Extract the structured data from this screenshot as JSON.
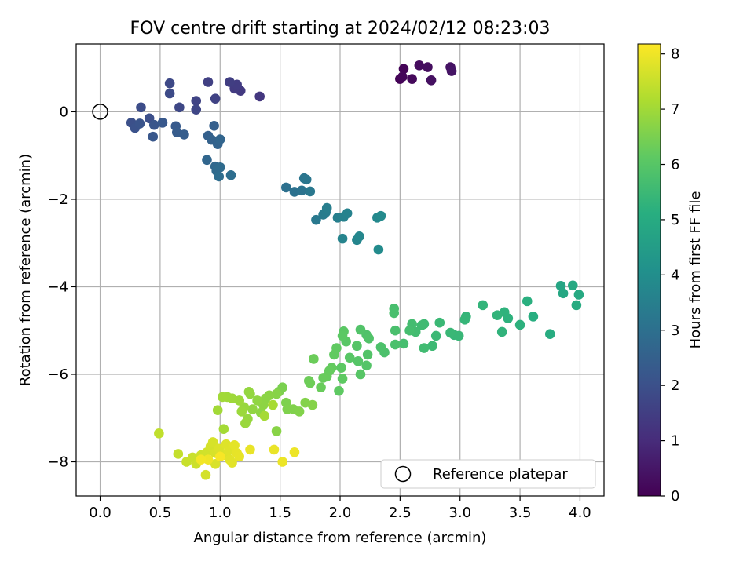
{
  "chart_data": {
    "type": "scatter",
    "title": "FOV centre drift starting at 2024/02/12 08:23:03",
    "xlabel": "Angular distance from reference (arcmin)",
    "ylabel": "Rotation from reference (arcmin)",
    "xlim": [
      -0.2,
      4.2
    ],
    "ylim": [
      -8.78,
      1.55
    ],
    "xticks": [
      0.0,
      0.5,
      1.0,
      1.5,
      2.0,
      2.5,
      3.0,
      3.5,
      4.0
    ],
    "xtick_labels": [
      "0.0",
      "0.5",
      "1.0",
      "1.5",
      "2.0",
      "2.5",
      "3.0",
      "3.5",
      "4.0"
    ],
    "yticks": [
      0,
      -2,
      -4,
      -6,
      -8
    ],
    "ytick_labels": [
      "0",
      "−2",
      "−4",
      "−6",
      "−8"
    ],
    "grid": true,
    "colormap": "viridis",
    "colorbar": {
      "label": "Hours from first FF file",
      "range": [
        0,
        8.18
      ],
      "ticks": [
        0,
        1,
        2,
        3,
        4,
        5,
        6,
        7,
        8
      ],
      "tick_labels": [
        "0",
        "1",
        "2",
        "3",
        "4",
        "5",
        "6",
        "7",
        "8"
      ]
    },
    "reference": {
      "label": "Reference platepar",
      "x": 0.0,
      "y": 0.0
    },
    "legend_position": "lower-right",
    "points": [
      {
        "x": 2.5,
        "y": 0.75,
        "t": 0.05
      },
      {
        "x": 2.53,
        "y": 0.98,
        "t": 0.08
      },
      {
        "x": 2.52,
        "y": 0.8,
        "t": 0.12
      },
      {
        "x": 2.6,
        "y": 0.75,
        "t": 0.18
      },
      {
        "x": 2.66,
        "y": 1.06,
        "t": 0.25
      },
      {
        "x": 2.73,
        "y": 1.02,
        "t": 0.3
      },
      {
        "x": 2.76,
        "y": 0.72,
        "t": 0.35
      },
      {
        "x": 2.92,
        "y": 1.02,
        "t": 0.4
      },
      {
        "x": 2.93,
        "y": 0.93,
        "t": 0.45
      },
      {
        "x": 1.33,
        "y": 0.35,
        "t": 1.3
      },
      {
        "x": 1.17,
        "y": 0.48,
        "t": 1.35
      },
      {
        "x": 1.12,
        "y": 0.53,
        "t": 1.4
      },
      {
        "x": 1.14,
        "y": 0.62,
        "t": 1.45
      },
      {
        "x": 1.08,
        "y": 0.68,
        "t": 1.5
      },
      {
        "x": 0.9,
        "y": 0.68,
        "t": 1.55
      },
      {
        "x": 0.96,
        "y": 0.3,
        "t": 1.6
      },
      {
        "x": 0.8,
        "y": 0.25,
        "t": 1.65
      },
      {
        "x": 0.8,
        "y": 0.05,
        "t": 1.7
      },
      {
        "x": 0.66,
        "y": 0.1,
        "t": 1.75
      },
      {
        "x": 0.58,
        "y": 0.65,
        "t": 1.8
      },
      {
        "x": 0.58,
        "y": 0.42,
        "t": 1.85
      },
      {
        "x": 0.34,
        "y": 0.1,
        "t": 1.9
      },
      {
        "x": 0.41,
        "y": -0.15,
        "t": 1.95
      },
      {
        "x": 0.26,
        "y": -0.25,
        "t": 2.0
      },
      {
        "x": 0.29,
        "y": -0.37,
        "t": 2.05
      },
      {
        "x": 0.33,
        "y": -0.27,
        "t": 2.1
      },
      {
        "x": 0.45,
        "y": -0.3,
        "t": 2.15
      },
      {
        "x": 0.44,
        "y": -0.57,
        "t": 2.2
      },
      {
        "x": 0.52,
        "y": -0.25,
        "t": 2.25
      },
      {
        "x": 0.63,
        "y": -0.33,
        "t": 2.3
      },
      {
        "x": 0.64,
        "y": -0.47,
        "t": 2.35
      },
      {
        "x": 0.7,
        "y": -0.52,
        "t": 2.4
      },
      {
        "x": 0.95,
        "y": -0.32,
        "t": 2.45
      },
      {
        "x": 0.9,
        "y": -0.55,
        "t": 2.5
      },
      {
        "x": 0.93,
        "y": -0.64,
        "t": 2.55
      },
      {
        "x": 0.98,
        "y": -0.74,
        "t": 2.6
      },
      {
        "x": 1.0,
        "y": -0.63,
        "t": 2.65
      },
      {
        "x": 0.89,
        "y": -1.1,
        "t": 2.7
      },
      {
        "x": 0.96,
        "y": -1.25,
        "t": 2.75
      },
      {
        "x": 0.97,
        "y": -1.35,
        "t": 2.8
      },
      {
        "x": 1.0,
        "y": -1.27,
        "t": 2.85
      },
      {
        "x": 0.99,
        "y": -1.48,
        "t": 2.9
      },
      {
        "x": 1.09,
        "y": -1.45,
        "t": 2.95
      },
      {
        "x": 1.55,
        "y": -1.73,
        "t": 3.0
      },
      {
        "x": 1.62,
        "y": -1.83,
        "t": 3.05
      },
      {
        "x": 1.68,
        "y": -1.8,
        "t": 3.1
      },
      {
        "x": 1.7,
        "y": -1.52,
        "t": 3.15
      },
      {
        "x": 1.72,
        "y": -1.55,
        "t": 3.2
      },
      {
        "x": 1.75,
        "y": -1.82,
        "t": 3.25
      },
      {
        "x": 1.8,
        "y": -2.47,
        "t": 3.3
      },
      {
        "x": 1.86,
        "y": -2.35,
        "t": 3.35
      },
      {
        "x": 1.88,
        "y": -2.3,
        "t": 3.4
      },
      {
        "x": 1.89,
        "y": -2.2,
        "t": 3.45
      },
      {
        "x": 1.98,
        "y": -2.42,
        "t": 3.5
      },
      {
        "x": 2.03,
        "y": -2.4,
        "t": 3.55
      },
      {
        "x": 2.06,
        "y": -2.32,
        "t": 3.6
      },
      {
        "x": 2.02,
        "y": -2.9,
        "t": 3.65
      },
      {
        "x": 2.14,
        "y": -2.93,
        "t": 3.7
      },
      {
        "x": 2.16,
        "y": -2.85,
        "t": 3.75
      },
      {
        "x": 2.31,
        "y": -2.42,
        "t": 3.8
      },
      {
        "x": 2.34,
        "y": -2.38,
        "t": 3.85
      },
      {
        "x": 2.32,
        "y": -3.15,
        "t": 3.9
      },
      {
        "x": 3.84,
        "y": -3.98,
        "t": 4.8
      },
      {
        "x": 3.86,
        "y": -4.15,
        "t": 4.85
      },
      {
        "x": 3.94,
        "y": -3.97,
        "t": 4.9
      },
      {
        "x": 3.99,
        "y": -4.18,
        "t": 4.95
      },
      {
        "x": 3.97,
        "y": -4.42,
        "t": 5.0
      },
      {
        "x": 3.75,
        "y": -5.08,
        "t": 5.05
      },
      {
        "x": 3.61,
        "y": -4.68,
        "t": 5.1
      },
      {
        "x": 3.56,
        "y": -4.33,
        "t": 5.15
      },
      {
        "x": 3.5,
        "y": -4.87,
        "t": 5.2
      },
      {
        "x": 3.4,
        "y": -4.72,
        "t": 5.22
      },
      {
        "x": 3.37,
        "y": -4.58,
        "t": 5.25
      },
      {
        "x": 3.35,
        "y": -5.03,
        "t": 5.28
      },
      {
        "x": 3.31,
        "y": -4.65,
        "t": 5.3
      },
      {
        "x": 3.19,
        "y": -4.42,
        "t": 5.33
      },
      {
        "x": 3.05,
        "y": -4.68,
        "t": 5.35
      },
      {
        "x": 3.04,
        "y": -4.75,
        "t": 5.38
      },
      {
        "x": 2.95,
        "y": -5.1,
        "t": 5.4
      },
      {
        "x": 2.99,
        "y": -5.12,
        "t": 5.43
      },
      {
        "x": 2.92,
        "y": -5.05,
        "t": 5.45
      },
      {
        "x": 2.83,
        "y": -4.82,
        "t": 5.48
      },
      {
        "x": 2.8,
        "y": -5.12,
        "t": 5.5
      },
      {
        "x": 2.77,
        "y": -5.35,
        "t": 5.52
      },
      {
        "x": 2.7,
        "y": -4.85,
        "t": 5.55
      },
      {
        "x": 2.68,
        "y": -4.88,
        "t": 5.58
      },
      {
        "x": 2.7,
        "y": -5.4,
        "t": 5.6
      },
      {
        "x": 2.63,
        "y": -5.03,
        "t": 5.62
      },
      {
        "x": 2.6,
        "y": -4.85,
        "t": 5.65
      },
      {
        "x": 2.58,
        "y": -5.0,
        "t": 5.68
      },
      {
        "x": 2.53,
        "y": -5.3,
        "t": 5.7
      },
      {
        "x": 2.45,
        "y": -4.5,
        "t": 5.72
      },
      {
        "x": 2.45,
        "y": -4.6,
        "t": 5.74
      },
      {
        "x": 2.46,
        "y": -5.0,
        "t": 5.76
      },
      {
        "x": 2.46,
        "y": -5.32,
        "t": 5.78
      },
      {
        "x": 2.37,
        "y": -5.5,
        "t": 5.8
      },
      {
        "x": 2.34,
        "y": -5.38,
        "t": 5.82
      },
      {
        "x": 2.22,
        "y": -5.1,
        "t": 5.85
      },
      {
        "x": 2.24,
        "y": -5.18,
        "t": 5.88
      },
      {
        "x": 2.17,
        "y": -4.98,
        "t": 5.9
      },
      {
        "x": 2.23,
        "y": -5.55,
        "t": 5.92
      },
      {
        "x": 2.22,
        "y": -5.8,
        "t": 5.94
      },
      {
        "x": 2.14,
        "y": -5.35,
        "t": 5.96
      },
      {
        "x": 2.15,
        "y": -5.7,
        "t": 5.98
      },
      {
        "x": 2.17,
        "y": -6.0,
        "t": 6.0
      },
      {
        "x": 2.08,
        "y": -5.62,
        "t": 6.02
      },
      {
        "x": 2.05,
        "y": -5.25,
        "t": 6.04
      },
      {
        "x": 2.03,
        "y": -5.02,
        "t": 6.06
      },
      {
        "x": 2.02,
        "y": -5.12,
        "t": 6.08
      },
      {
        "x": 2.01,
        "y": -5.85,
        "t": 6.1
      },
      {
        "x": 2.02,
        "y": -6.1,
        "t": 6.12
      },
      {
        "x": 1.99,
        "y": -6.38,
        "t": 6.14
      },
      {
        "x": 1.97,
        "y": -5.4,
        "t": 6.16
      },
      {
        "x": 1.95,
        "y": -5.55,
        "t": 6.18
      },
      {
        "x": 1.93,
        "y": -5.85,
        "t": 6.2
      },
      {
        "x": 1.91,
        "y": -5.92,
        "t": 6.22
      },
      {
        "x": 1.89,
        "y": -6.05,
        "t": 6.24
      },
      {
        "x": 1.86,
        "y": -6.08,
        "t": 6.26
      },
      {
        "x": 1.84,
        "y": -6.3,
        "t": 6.28
      },
      {
        "x": 1.78,
        "y": -5.65,
        "t": 6.3
      },
      {
        "x": 1.74,
        "y": -6.15,
        "t": 6.32
      },
      {
        "x": 1.75,
        "y": -6.2,
        "t": 6.34
      },
      {
        "x": 1.52,
        "y": -6.3,
        "t": 6.5
      },
      {
        "x": 1.49,
        "y": -6.4,
        "t": 6.52
      },
      {
        "x": 1.55,
        "y": -6.65,
        "t": 6.54
      },
      {
        "x": 1.56,
        "y": -6.8,
        "t": 6.56
      },
      {
        "x": 1.61,
        "y": -6.8,
        "t": 6.58
      },
      {
        "x": 1.66,
        "y": -6.85,
        "t": 6.6
      },
      {
        "x": 1.71,
        "y": -6.65,
        "t": 6.62
      },
      {
        "x": 1.77,
        "y": -6.7,
        "t": 6.64
      },
      {
        "x": 1.47,
        "y": -6.45,
        "t": 6.66
      },
      {
        "x": 1.47,
        "y": -7.3,
        "t": 6.68
      },
      {
        "x": 1.41,
        "y": -6.48,
        "t": 6.7
      },
      {
        "x": 1.38,
        "y": -6.55,
        "t": 6.72
      },
      {
        "x": 1.36,
        "y": -6.7,
        "t": 6.74
      },
      {
        "x": 1.34,
        "y": -6.88,
        "t": 6.76
      },
      {
        "x": 1.31,
        "y": -6.6,
        "t": 6.78
      },
      {
        "x": 1.27,
        "y": -6.8,
        "t": 6.8
      },
      {
        "x": 1.25,
        "y": -6.45,
        "t": 6.82
      },
      {
        "x": 1.24,
        "y": -6.4,
        "t": 6.84
      },
      {
        "x": 1.23,
        "y": -7.02,
        "t": 6.86
      },
      {
        "x": 1.2,
        "y": -6.75,
        "t": 6.88
      },
      {
        "x": 1.21,
        "y": -7.12,
        "t": 6.9
      },
      {
        "x": 1.18,
        "y": -6.85,
        "t": 6.92
      },
      {
        "x": 1.16,
        "y": -6.6,
        "t": 6.94
      },
      {
        "x": 1.1,
        "y": -6.55,
        "t": 6.96
      },
      {
        "x": 1.06,
        "y": -6.52,
        "t": 6.98
      },
      {
        "x": 1.02,
        "y": -6.52,
        "t": 7.0
      },
      {
        "x": 0.98,
        "y": -6.82,
        "t": 7.02
      },
      {
        "x": 1.03,
        "y": -7.25,
        "t": 7.04
      },
      {
        "x": 1.37,
        "y": -6.95,
        "t": 7.06
      },
      {
        "x": 1.44,
        "y": -6.7,
        "t": 7.08
      },
      {
        "x": 0.49,
        "y": -7.35,
        "t": 7.4
      },
      {
        "x": 0.65,
        "y": -7.82,
        "t": 7.45
      },
      {
        "x": 0.72,
        "y": -8.0,
        "t": 7.5
      },
      {
        "x": 0.77,
        "y": -7.9,
        "t": 7.52
      },
      {
        "x": 0.8,
        "y": -8.05,
        "t": 7.55
      },
      {
        "x": 0.84,
        "y": -7.85,
        "t": 7.58
      },
      {
        "x": 0.86,
        "y": -7.92,
        "t": 7.6
      },
      {
        "x": 0.89,
        "y": -7.78,
        "t": 7.62
      },
      {
        "x": 0.88,
        "y": -8.3,
        "t": 7.64
      },
      {
        "x": 0.92,
        "y": -7.65,
        "t": 7.66
      },
      {
        "x": 0.94,
        "y": -7.55,
        "t": 7.68
      },
      {
        "x": 0.96,
        "y": -7.8,
        "t": 7.7
      },
      {
        "x": 0.96,
        "y": -8.05,
        "t": 7.72
      },
      {
        "x": 0.99,
        "y": -7.7,
        "t": 7.74
      },
      {
        "x": 1.02,
        "y": -7.85,
        "t": 7.76
      },
      {
        "x": 1.05,
        "y": -7.6,
        "t": 7.78
      },
      {
        "x": 1.07,
        "y": -7.75,
        "t": 7.8
      },
      {
        "x": 1.08,
        "y": -7.95,
        "t": 7.82
      },
      {
        "x": 1.1,
        "y": -8.02,
        "t": 7.84
      },
      {
        "x": 1.12,
        "y": -7.62,
        "t": 7.86
      },
      {
        "x": 1.14,
        "y": -7.8,
        "t": 7.88
      },
      {
        "x": 1.16,
        "y": -7.88,
        "t": 7.9
      },
      {
        "x": 1.25,
        "y": -7.72,
        "t": 7.92
      },
      {
        "x": 1.45,
        "y": -7.72,
        "t": 7.94
      },
      {
        "x": 1.52,
        "y": -8.0,
        "t": 7.96
      },
      {
        "x": 1.62,
        "y": -7.78,
        "t": 7.98
      },
      {
        "x": 0.9,
        "y": -7.95,
        "t": 8.0
      },
      {
        "x": 0.84,
        "y": -7.95,
        "t": 8.05
      },
      {
        "x": 1.0,
        "y": -7.88,
        "t": 8.1
      }
    ]
  }
}
